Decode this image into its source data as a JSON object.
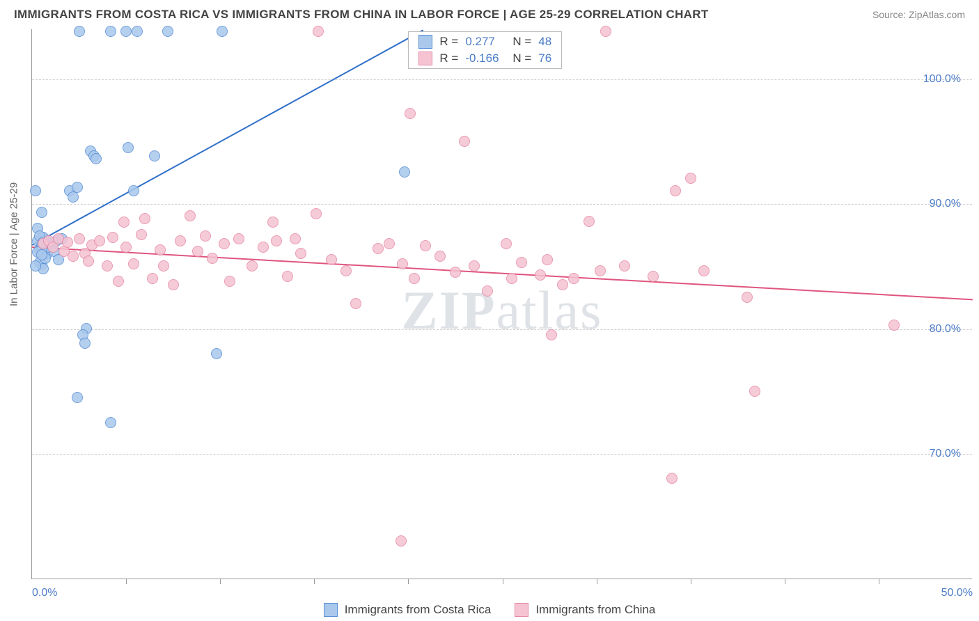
{
  "header": {
    "title": "IMMIGRANTS FROM COSTA RICA VS IMMIGRANTS FROM CHINA IN LABOR FORCE | AGE 25-29 CORRELATION CHART",
    "source_label": "Source: ZipAtlas.com"
  },
  "chart": {
    "type": "scatter",
    "ylabel": "In Labor Force | Age 25-29",
    "xlim": [
      0,
      50
    ],
    "ylim": [
      60,
      104
    ],
    "xtick_labels": [
      {
        "v": 0,
        "label": "0.0%"
      },
      {
        "v": 50,
        "label": "50.0%"
      }
    ],
    "xticks_minor": [
      5,
      10,
      15,
      20,
      25,
      30,
      35,
      40,
      45
    ],
    "ytick_labels": [
      {
        "v": 70,
        "label": "70.0%"
      },
      {
        "v": 80,
        "label": "80.0%"
      },
      {
        "v": 90,
        "label": "90.0%"
      },
      {
        "v": 100,
        "label": "100.0%"
      }
    ],
    "background_color": "#ffffff",
    "grid_color": "#d0d0d0",
    "axis_color": "#999999",
    "label_color": "#666666",
    "tick_label_color": "#4b7cc7",
    "marker_radius": 8,
    "marker_fill_opacity": 0.28,
    "marker_stroke_opacity": 0.9,
    "trend_width": 2,
    "watermark": "ZIPatlas"
  },
  "series": [
    {
      "name": "Immigrants from Costa Rica",
      "color_stroke": "#5a8fd6",
      "color_fill": "#a9c8ec",
      "R": "0.277",
      "N": "48",
      "trend": {
        "x1": 0,
        "y1": 86.8,
        "x2": 20.8,
        "y2": 104,
        "color": "#2f6fc9"
      },
      "points": [
        {
          "x": 0.3,
          "y": 87.0
        },
        {
          "x": 0.4,
          "y": 86.3
        },
        {
          "x": 0.5,
          "y": 86.6
        },
        {
          "x": 0.6,
          "y": 85.8
        },
        {
          "x": 0.7,
          "y": 87.1
        },
        {
          "x": 0.5,
          "y": 85.1
        },
        {
          "x": 0.8,
          "y": 86.0
        },
        {
          "x": 0.9,
          "y": 86.5
        },
        {
          "x": 0.4,
          "y": 85.3
        },
        {
          "x": 1.0,
          "y": 86.8
        },
        {
          "x": 1.2,
          "y": 86.2
        },
        {
          "x": 1.3,
          "y": 87.0
        },
        {
          "x": 1.4,
          "y": 85.5
        },
        {
          "x": 1.6,
          "y": 87.2
        },
        {
          "x": 0.6,
          "y": 84.8
        },
        {
          "x": 0.3,
          "y": 88.0
        },
        {
          "x": 0.2,
          "y": 91.0
        },
        {
          "x": 0.5,
          "y": 89.3
        },
        {
          "x": 2.0,
          "y": 91.0
        },
        {
          "x": 2.2,
          "y": 90.5
        },
        {
          "x": 2.4,
          "y": 91.3
        },
        {
          "x": 2.5,
          "y": 103.8
        },
        {
          "x": 3.1,
          "y": 94.2
        },
        {
          "x": 3.3,
          "y": 93.8
        },
        {
          "x": 3.4,
          "y": 93.6
        },
        {
          "x": 4.2,
          "y": 103.8
        },
        {
          "x": 5.0,
          "y": 103.8
        },
        {
          "x": 5.1,
          "y": 94.5
        },
        {
          "x": 5.4,
          "y": 91.0
        },
        {
          "x": 5.6,
          "y": 103.8
        },
        {
          "x": 6.5,
          "y": 93.8
        },
        {
          "x": 7.2,
          "y": 103.8
        },
        {
          "x": 10.1,
          "y": 103.8
        },
        {
          "x": 19.8,
          "y": 92.5
        },
        {
          "x": 2.9,
          "y": 80.0
        },
        {
          "x": 2.7,
          "y": 79.5
        },
        {
          "x": 2.8,
          "y": 78.8
        },
        {
          "x": 9.8,
          "y": 78.0
        },
        {
          "x": 4.2,
          "y": 72.5
        },
        {
          "x": 2.4,
          "y": 74.5
        },
        {
          "x": 0.5,
          "y": 86.4
        },
        {
          "x": 0.6,
          "y": 87.3
        },
        {
          "x": 0.3,
          "y": 86.1
        },
        {
          "x": 0.7,
          "y": 85.6
        },
        {
          "x": 0.4,
          "y": 87.4
        },
        {
          "x": 0.2,
          "y": 85.0
        },
        {
          "x": 0.5,
          "y": 85.9
        },
        {
          "x": 0.6,
          "y": 86.9
        }
      ]
    },
    {
      "name": "Immigrants from China",
      "color_stroke": "#e58aa6",
      "color_fill": "#f5c3d2",
      "R": "-0.166",
      "N": "76",
      "trend": {
        "x1": 0,
        "y1": 86.6,
        "x2": 50,
        "y2": 82.4,
        "color": "#e0557f"
      },
      "points": [
        {
          "x": 0.6,
          "y": 86.8
        },
        {
          "x": 0.9,
          "y": 87.0
        },
        {
          "x": 1.1,
          "y": 86.5
        },
        {
          "x": 1.4,
          "y": 87.2
        },
        {
          "x": 1.7,
          "y": 86.2
        },
        {
          "x": 1.9,
          "y": 86.9
        },
        {
          "x": 2.2,
          "y": 85.8
        },
        {
          "x": 2.5,
          "y": 87.2
        },
        {
          "x": 2.8,
          "y": 86.0
        },
        {
          "x": 3.0,
          "y": 85.4
        },
        {
          "x": 3.2,
          "y": 86.7
        },
        {
          "x": 3.6,
          "y": 87.0
        },
        {
          "x": 4.0,
          "y": 85.0
        },
        {
          "x": 4.3,
          "y": 87.3
        },
        {
          "x": 4.6,
          "y": 83.8
        },
        {
          "x": 5.0,
          "y": 86.5
        },
        {
          "x": 5.4,
          "y": 85.2
        },
        {
          "x": 5.8,
          "y": 87.5
        },
        {
          "x": 6.4,
          "y": 84.0
        },
        {
          "x": 6.8,
          "y": 86.3
        },
        {
          "x": 7.0,
          "y": 85.0
        },
        {
          "x": 7.5,
          "y": 83.5
        },
        {
          "x": 7.9,
          "y": 87.0
        },
        {
          "x": 8.4,
          "y": 89.0
        },
        {
          "x": 8.8,
          "y": 86.2
        },
        {
          "x": 9.2,
          "y": 87.4
        },
        {
          "x": 9.6,
          "y": 85.6
        },
        {
          "x": 10.2,
          "y": 86.8
        },
        {
          "x": 10.5,
          "y": 83.8
        },
        {
          "x": 11.0,
          "y": 87.2
        },
        {
          "x": 11.7,
          "y": 85.0
        },
        {
          "x": 12.3,
          "y": 86.5
        },
        {
          "x": 13.0,
          "y": 87.0
        },
        {
          "x": 13.6,
          "y": 84.2
        },
        {
          "x": 14.3,
          "y": 86.0
        },
        {
          "x": 15.1,
          "y": 89.2
        },
        {
          "x": 15.9,
          "y": 85.5
        },
        {
          "x": 15.2,
          "y": 103.8
        },
        {
          "x": 16.7,
          "y": 84.6
        },
        {
          "x": 17.2,
          "y": 82.0
        },
        {
          "x": 18.4,
          "y": 86.4
        },
        {
          "x": 19.0,
          "y": 86.8
        },
        {
          "x": 19.7,
          "y": 85.2
        },
        {
          "x": 20.3,
          "y": 84.0
        },
        {
          "x": 20.1,
          "y": 97.2
        },
        {
          "x": 20.9,
          "y": 86.6
        },
        {
          "x": 21.7,
          "y": 85.8
        },
        {
          "x": 22.5,
          "y": 84.5
        },
        {
          "x": 23.0,
          "y": 95.0
        },
        {
          "x": 23.5,
          "y": 85.0
        },
        {
          "x": 24.2,
          "y": 83.0
        },
        {
          "x": 25.2,
          "y": 86.8
        },
        {
          "x": 25.5,
          "y": 84.0
        },
        {
          "x": 26.0,
          "y": 85.3
        },
        {
          "x": 27.0,
          "y": 84.3
        },
        {
          "x": 27.6,
          "y": 79.5
        },
        {
          "x": 28.2,
          "y": 83.5
        },
        {
          "x": 27.4,
          "y": 85.5
        },
        {
          "x": 28.8,
          "y": 84.0
        },
        {
          "x": 29.6,
          "y": 88.6
        },
        {
          "x": 30.2,
          "y": 84.6
        },
        {
          "x": 30.5,
          "y": 103.8
        },
        {
          "x": 31.5,
          "y": 85.0
        },
        {
          "x": 33.0,
          "y": 84.2
        },
        {
          "x": 34.2,
          "y": 91.0
        },
        {
          "x": 35.0,
          "y": 92.0
        },
        {
          "x": 35.7,
          "y": 84.6
        },
        {
          "x": 34.0,
          "y": 68.0
        },
        {
          "x": 38.0,
          "y": 82.5
        },
        {
          "x": 38.4,
          "y": 75.0
        },
        {
          "x": 19.6,
          "y": 63.0
        },
        {
          "x": 45.8,
          "y": 80.3
        },
        {
          "x": 12.8,
          "y": 88.5
        },
        {
          "x": 14.0,
          "y": 87.2
        },
        {
          "x": 6.0,
          "y": 88.8
        },
        {
          "x": 4.9,
          "y": 88.5
        }
      ]
    }
  ],
  "legend": {
    "items": [
      {
        "label": "Immigrants from Costa Rica",
        "stroke": "#5a8fd6",
        "fill": "#a9c8ec"
      },
      {
        "label": "Immigrants from China",
        "stroke": "#e58aa6",
        "fill": "#f5c3d2"
      }
    ]
  },
  "stats_box": {
    "rows": [
      {
        "swatch_stroke": "#5a8fd6",
        "swatch_fill": "#a9c8ec",
        "r_label": "R =",
        "r_val": "0.277",
        "n_label": "N =",
        "n_val": "48"
      },
      {
        "swatch_stroke": "#e58aa6",
        "swatch_fill": "#f5c3d2",
        "r_label": "R =",
        "r_val": "-0.166",
        "n_label": "N =",
        "n_val": "76"
      }
    ]
  }
}
